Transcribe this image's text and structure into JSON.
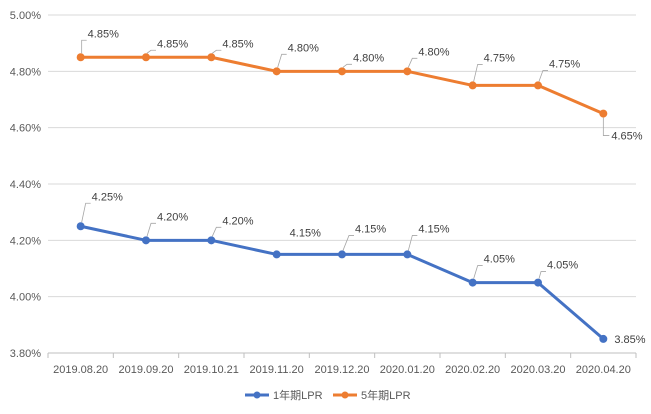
{
  "chart_data": {
    "type": "line",
    "title": "",
    "xlabel": "",
    "ylabel": "",
    "categories": [
      "2019.08.20",
      "2019.09.20",
      "2019.10.21",
      "2019.11.20",
      "2019.12.20",
      "2020.01.20",
      "2020.02.20",
      "2020.03.20",
      "2020.04.20"
    ],
    "ylim": [
      3.8,
      5.0
    ],
    "yticks": [
      3.8,
      4.0,
      4.2,
      4.4,
      4.6,
      4.8,
      5.0
    ],
    "ytick_labels": [
      "3.80%",
      "4.00%",
      "4.20%",
      "4.40%",
      "4.60%",
      "4.80%",
      "5.00%"
    ],
    "grid": true,
    "legend_position": "bottom",
    "series": [
      {
        "name": "1年期LPR",
        "color": "#4472C4",
        "values": [
          4.25,
          4.2,
          4.2,
          4.15,
          4.15,
          4.15,
          4.05,
          4.05,
          3.85
        ],
        "labels": [
          "4.25%",
          "4.20%",
          "4.20%",
          "4.15%",
          "4.15%",
          "4.15%",
          "4.05%",
          "4.05%",
          "3.85%"
        ]
      },
      {
        "name": "5年期LPR",
        "color": "#ED7D31",
        "values": [
          4.85,
          4.85,
          4.85,
          4.8,
          4.8,
          4.8,
          4.75,
          4.75,
          4.65
        ],
        "labels": [
          "4.85%",
          "4.85%",
          "4.85%",
          "4.80%",
          "4.80%",
          "4.80%",
          "4.75%",
          "4.75%",
          "4.65%"
        ]
      }
    ]
  }
}
